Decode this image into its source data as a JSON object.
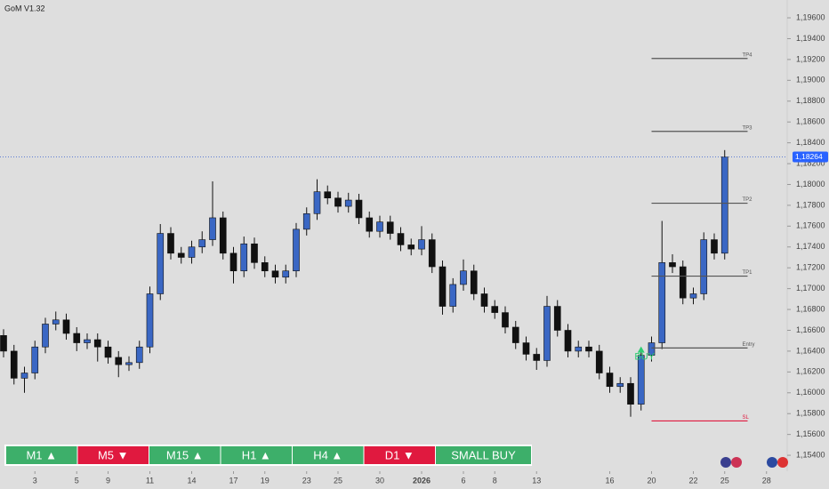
{
  "chart_data": {
    "type": "candlestick",
    "title": "GoM V1.32",
    "up_color": "#3a67c4",
    "down_color": "#111111",
    "open": [
      1.1655,
      1.164,
      1.1614,
      1.1619,
      1.1644,
      1.1666,
      1.167,
      1.1657,
      1.1648,
      1.1651,
      1.1644,
      1.1634,
      1.1627,
      1.1629,
      1.1644,
      1.1695,
      1.1753,
      1.1734,
      1.173,
      1.174,
      1.1747,
      1.1768,
      1.1734,
      1.1717,
      1.1743,
      1.1725,
      1.1717,
      1.1711,
      1.1717,
      1.1757,
      1.1772,
      1.1793,
      1.1787,
      1.1779,
      1.1785,
      1.1768,
      1.1755,
      1.1764,
      1.1753,
      1.1742,
      1.1738,
      1.1747,
      1.1721,
      1.1683,
      1.1704,
      1.1717,
      1.1695,
      1.1683,
      1.1677,
      1.1663,
      1.1648,
      1.1637,
      1.1631,
      1.1683,
      1.166,
      1.164,
      1.1644,
      1.164,
      1.1619,
      1.1606,
      1.1609,
      1.1589,
      1.1636,
      1.1648,
      1.1725,
      1.1721,
      1.1691,
      1.1695,
      1.1747,
      1.1734
    ],
    "high": [
      1.1661,
      1.1646,
      1.1625,
      1.165,
      1.1672,
      1.1678,
      1.1676,
      1.1663,
      1.1657,
      1.1657,
      1.165,
      1.164,
      1.1635,
      1.165,
      1.1702,
      1.1762,
      1.1759,
      1.174,
      1.1746,
      1.1755,
      1.1803,
      1.1774,
      1.174,
      1.175,
      1.1749,
      1.1731,
      1.1723,
      1.1723,
      1.1763,
      1.1778,
      1.1805,
      1.1799,
      1.1793,
      1.1792,
      1.1791,
      1.1774,
      1.177,
      1.177,
      1.1759,
      1.1748,
      1.176,
      1.1753,
      1.1727,
      1.171,
      1.1728,
      1.1723,
      1.1701,
      1.1689,
      1.1683,
      1.1669,
      1.1654,
      1.1643,
      1.1693,
      1.1689,
      1.1666,
      1.165,
      1.165,
      1.1646,
      1.1625,
      1.1615,
      1.1615,
      1.1642,
      1.1654,
      1.1765,
      1.1733,
      1.1727,
      1.1701,
      1.1754,
      1.1753,
      1.1833
    ],
    "low": [
      1.1634,
      1.1608,
      1.16,
      1.1613,
      1.1638,
      1.166,
      1.1651,
      1.164,
      1.1642,
      1.163,
      1.1628,
      1.1615,
      1.1621,
      1.1623,
      1.1638,
      1.1689,
      1.1728,
      1.1724,
      1.1724,
      1.1734,
      1.1741,
      1.1728,
      1.1705,
      1.1711,
      1.1719,
      1.1711,
      1.1705,
      1.1705,
      1.1711,
      1.1751,
      1.1766,
      1.1781,
      1.1773,
      1.1773,
      1.1762,
      1.1749,
      1.1749,
      1.1747,
      1.1736,
      1.1732,
      1.1732,
      1.1715,
      1.1675,
      1.1677,
      1.1698,
      1.1689,
      1.1677,
      1.1671,
      1.1657,
      1.1642,
      1.1631,
      1.1622,
      1.1625,
      1.1654,
      1.1634,
      1.1634,
      1.1634,
      1.1613,
      1.16,
      1.16,
      1.1577,
      1.1583,
      1.163,
      1.1642,
      1.1715,
      1.1685,
      1.1685,
      1.1689,
      1.1728,
      1.1728
    ],
    "close": [
      1.164,
      1.1614,
      1.1619,
      1.1644,
      1.1666,
      1.167,
      1.1657,
      1.1648,
      1.1651,
      1.1644,
      1.1634,
      1.1627,
      1.1629,
      1.1644,
      1.1695,
      1.1753,
      1.1734,
      1.173,
      1.174,
      1.1747,
      1.1768,
      1.1734,
      1.1717,
      1.1743,
      1.1725,
      1.1717,
      1.1711,
      1.1717,
      1.1757,
      1.1772,
      1.1793,
      1.1787,
      1.1779,
      1.1785,
      1.1768,
      1.1755,
      1.1764,
      1.1753,
      1.1742,
      1.1738,
      1.1747,
      1.1721,
      1.1683,
      1.1704,
      1.1717,
      1.1695,
      1.1683,
      1.1677,
      1.1663,
      1.1648,
      1.1637,
      1.1631,
      1.1683,
      1.166,
      1.164,
      1.1644,
      1.164,
      1.1619,
      1.1606,
      1.1609,
      1.1589,
      1.1636,
      1.1648,
      1.1725,
      1.1721,
      1.1691,
      1.1695,
      1.1747,
      1.1734,
      1.18264
    ],
    "xlim": [
      -0.34,
      74.98
    ],
    "ylim": [
      1.15247,
      1.19771
    ],
    "xticks": [
      {
        "value": 3,
        "label": "3"
      },
      {
        "value": 7,
        "label": "5"
      },
      {
        "value": 10,
        "label": "9"
      },
      {
        "value": 14,
        "label": "11"
      },
      {
        "value": 18,
        "label": "14"
      },
      {
        "value": 22,
        "label": "17"
      },
      {
        "value": 25,
        "label": "19"
      },
      {
        "value": 29,
        "label": "23"
      },
      {
        "value": 32,
        "label": "25"
      },
      {
        "value": 36,
        "label": "30"
      },
      {
        "value": 40,
        "label": "2026"
      },
      {
        "value": 44,
        "label": "6"
      },
      {
        "value": 47,
        "label": "8"
      },
      {
        "value": 51,
        "label": "13"
      },
      {
        "value": 58,
        "label": "16"
      },
      {
        "value": 62,
        "label": "20"
      },
      {
        "value": 66,
        "label": "22"
      },
      {
        "value": 69,
        "label": "25"
      },
      {
        "value": 73,
        "label": "28"
      }
    ],
    "yticks": [
      {
        "value": 1.154,
        "label": "1,15400"
      },
      {
        "value": 1.156,
        "label": "1,15600"
      },
      {
        "value": 1.158,
        "label": "1,15800"
      },
      {
        "value": 1.16,
        "label": "1,16000"
      },
      {
        "value": 1.162,
        "label": "1,16200"
      },
      {
        "value": 1.164,
        "label": "1,16400"
      },
      {
        "value": 1.166,
        "label": "1,16600"
      },
      {
        "value": 1.168,
        "label": "1,16800"
      },
      {
        "value": 1.17,
        "label": "1,17000"
      },
      {
        "value": 1.172,
        "label": "1,17200"
      },
      {
        "value": 1.174,
        "label": "1,17400"
      },
      {
        "value": 1.176,
        "label": "1,17600"
      },
      {
        "value": 1.178,
        "label": "1,17800"
      },
      {
        "value": 1.18,
        "label": "1,18000"
      },
      {
        "value": 1.182,
        "label": "1,18200"
      },
      {
        "value": 1.184,
        "label": "1,18400"
      },
      {
        "value": 1.186,
        "label": "1,18600"
      },
      {
        "value": 1.188,
        "label": "1,18800"
      },
      {
        "value": 1.19,
        "label": "1,19000"
      },
      {
        "value": 1.192,
        "label": "1,19200"
      },
      {
        "value": 1.194,
        "label": "1,19400"
      },
      {
        "value": 1.196,
        "label": "1,19600"
      }
    ],
    "last_price": {
      "value": 1.18264,
      "label": "1,18264"
    },
    "levels": [
      {
        "label": "TP4",
        "value": 1.1921,
        "color": "#555555"
      },
      {
        "label": "TP3",
        "value": 1.1851,
        "color": "#555555"
      },
      {
        "label": "TP2",
        "value": 1.1782,
        "color": "#555555"
      },
      {
        "label": "TP1",
        "value": 1.1712,
        "color": "#555555"
      },
      {
        "label": "Entry",
        "value": 1.1643,
        "color": "#555555"
      },
      {
        "label": "SL",
        "value": 1.1573,
        "color": "#e0193f"
      }
    ],
    "level_start": 62,
    "signal": {
      "label": "BUY",
      "index": 61,
      "value": 1.1636
    }
  },
  "panel": [
    {
      "label": "M1 ▲",
      "color": "#3daf6a"
    },
    {
      "label": "M5 ▼",
      "color": "#e0193f"
    },
    {
      "label": "M15 ▲",
      "color": "#3daf6a"
    },
    {
      "label": "H1 ▲",
      "color": "#3daf6a"
    },
    {
      "label": "H4 ▲",
      "color": "#3daf6a"
    },
    {
      "label": "D1 ▼",
      "color": "#e0193f"
    },
    {
      "label": "SMALL BUY",
      "color": "#3daf6a"
    }
  ]
}
